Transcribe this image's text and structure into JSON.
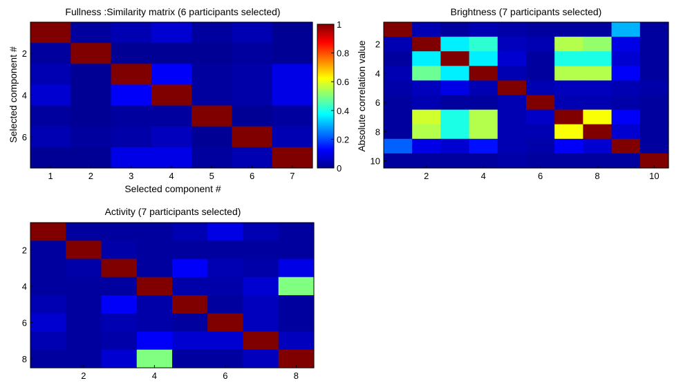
{
  "chart_data": [
    {
      "type": "heatmap",
      "title": "Fullness :Similarity matrix (6 participants selected)",
      "xlabel": "Selected component #",
      "ylabel": "Selected component #",
      "x_ticks": [
        "1",
        "2",
        "3",
        "4",
        "5",
        "6",
        "7"
      ],
      "y_ticks": [
        "2",
        "4",
        "6"
      ],
      "colorbar": {
        "label": "Absolute correlation value",
        "ticks": [
          "0",
          "0.2",
          "0.4",
          "0.6",
          "0.8",
          "1"
        ],
        "range": [
          0,
          1
        ]
      },
      "values": [
        [
          1.0,
          0.03,
          0.05,
          0.08,
          0.03,
          0.05,
          0.02
        ],
        [
          0.03,
          1.0,
          0.02,
          0.02,
          0.02,
          0.03,
          0.02
        ],
        [
          0.05,
          0.02,
          1.0,
          0.12,
          0.03,
          0.04,
          0.1
        ],
        [
          0.08,
          0.02,
          0.12,
          1.0,
          0.03,
          0.04,
          0.1
        ],
        [
          0.03,
          0.02,
          0.03,
          0.03,
          1.0,
          0.02,
          0.03
        ],
        [
          0.05,
          0.03,
          0.04,
          0.06,
          0.02,
          1.0,
          0.05
        ],
        [
          0.02,
          0.02,
          0.1,
          0.1,
          0.03,
          0.05,
          1.0
        ]
      ]
    },
    {
      "type": "heatmap",
      "title": "Brightness (7 participants selected)",
      "xlabel": "",
      "ylabel": "",
      "x_ticks": [
        "2",
        "4",
        "6",
        "8",
        "10"
      ],
      "y_ticks": [
        "2",
        "4",
        "6",
        "8",
        "10"
      ],
      "values": [
        [
          1.0,
          0.05,
          0.03,
          0.05,
          0.04,
          0.03,
          0.03,
          0.03,
          0.3,
          0.03
        ],
        [
          0.05,
          1.0,
          0.36,
          0.42,
          0.06,
          0.05,
          0.55,
          0.52,
          0.1,
          0.03
        ],
        [
          0.03,
          0.36,
          1.0,
          0.36,
          0.08,
          0.03,
          0.4,
          0.4,
          0.08,
          0.03
        ],
        [
          0.05,
          0.48,
          0.36,
          1.0,
          0.05,
          0.03,
          0.55,
          0.55,
          0.12,
          0.03
        ],
        [
          0.04,
          0.06,
          0.1,
          0.05,
          1.0,
          0.05,
          0.06,
          0.06,
          0.05,
          0.04
        ],
        [
          0.03,
          0.05,
          0.03,
          0.03,
          0.05,
          1.0,
          0.05,
          0.05,
          0.04,
          0.03
        ],
        [
          0.03,
          0.58,
          0.4,
          0.55,
          0.05,
          0.07,
          1.0,
          0.62,
          0.12,
          0.03
        ],
        [
          0.03,
          0.55,
          0.4,
          0.55,
          0.05,
          0.05,
          0.62,
          1.0,
          0.08,
          0.03
        ],
        [
          0.22,
          0.1,
          0.08,
          0.14,
          0.05,
          0.04,
          0.12,
          0.08,
          1.0,
          0.03
        ],
        [
          0.03,
          0.03,
          0.03,
          0.03,
          0.04,
          0.03,
          0.03,
          0.03,
          0.03,
          1.0
        ]
      ]
    },
    {
      "type": "heatmap",
      "title": "Activity (7 participants selected)",
      "xlabel": "",
      "ylabel": "",
      "x_ticks": [
        "2",
        "4",
        "6",
        "8"
      ],
      "y_ticks": [
        "2",
        "4",
        "6",
        "8"
      ],
      "values": [
        [
          1.0,
          0.03,
          0.03,
          0.03,
          0.05,
          0.1,
          0.05,
          0.03
        ],
        [
          0.03,
          1.0,
          0.04,
          0.03,
          0.03,
          0.03,
          0.03,
          0.03
        ],
        [
          0.03,
          0.04,
          1.0,
          0.03,
          0.12,
          0.05,
          0.04,
          0.1
        ],
        [
          0.03,
          0.03,
          0.03,
          1.0,
          0.04,
          0.04,
          0.08,
          0.5
        ],
        [
          0.05,
          0.03,
          0.12,
          0.04,
          1.0,
          0.03,
          0.06,
          0.03
        ],
        [
          0.08,
          0.03,
          0.05,
          0.04,
          0.03,
          1.0,
          0.06,
          0.03
        ],
        [
          0.05,
          0.03,
          0.04,
          0.12,
          0.08,
          0.08,
          1.0,
          0.06
        ],
        [
          0.03,
          0.03,
          0.08,
          0.5,
          0.03,
          0.03,
          0.06,
          1.0
        ]
      ]
    }
  ]
}
